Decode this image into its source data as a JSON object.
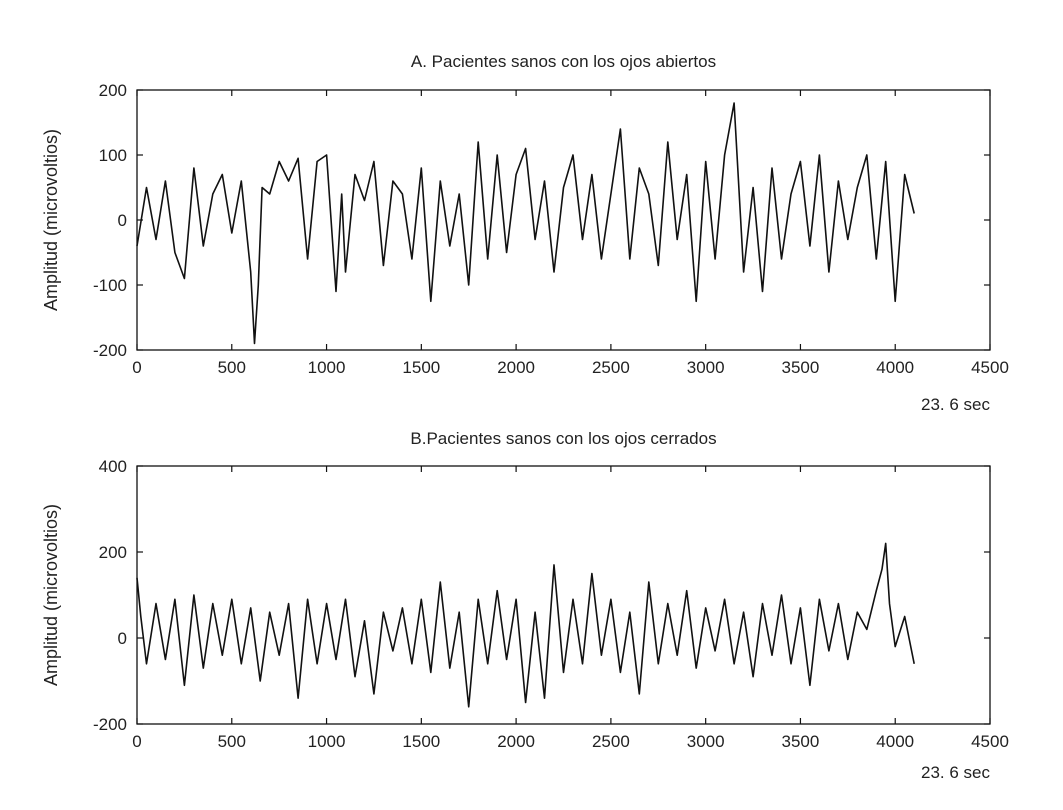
{
  "chart_data": [
    {
      "type": "line",
      "title": "A. Pacientes sanos con los ojos abiertos",
      "ylabel": "Amplitud (microvoltios)",
      "xlabel": "23. 6 sec",
      "xlim": [
        0,
        4500
      ],
      "ylim": [
        -200,
        200
      ],
      "x_ticks": [
        "0",
        "500",
        "1000",
        "1500",
        "2000",
        "2500",
        "3000",
        "3500",
        "4000",
        "4500"
      ],
      "y_ticks": [
        "200",
        "100",
        "0",
        "-100",
        "-200"
      ],
      "x_tick_values": [
        0,
        500,
        1000,
        1500,
        2000,
        2500,
        3000,
        3500,
        4000,
        4500
      ],
      "y_tick_values": [
        200,
        100,
        0,
        -100,
        -200
      ],
      "grid": false,
      "series": [
        {
          "color": "#111111",
          "x": [
            0,
            50,
            100,
            150,
            200,
            250,
            300,
            350,
            400,
            450,
            500,
            550,
            600,
            620,
            640,
            660,
            700,
            750,
            800,
            850,
            900,
            950,
            1000,
            1050,
            1080,
            1100,
            1150,
            1200,
            1250,
            1300,
            1350,
            1400,
            1450,
            1500,
            1550,
            1600,
            1650,
            1700,
            1750,
            1800,
            1850,
            1900,
            1950,
            2000,
            2050,
            2100,
            2150,
            2200,
            2250,
            2300,
            2350,
            2400,
            2450,
            2500,
            2550,
            2600,
            2650,
            2700,
            2750,
            2800,
            2850,
            2900,
            2950,
            3000,
            3050,
            3100,
            3150,
            3200,
            3250,
            3300,
            3350,
            3400,
            3450,
            3500,
            3550,
            3600,
            3650,
            3700,
            3750,
            3800,
            3850,
            3900,
            3950,
            4000,
            4050,
            4100
          ],
          "values": [
            -40,
            50,
            -30,
            60,
            -50,
            -90,
            80,
            -40,
            40,
            70,
            -20,
            60,
            -80,
            -190,
            -100,
            50,
            40,
            90,
            60,
            95,
            -60,
            90,
            100,
            -110,
            40,
            -80,
            70,
            30,
            90,
            -70,
            60,
            40,
            -60,
            80,
            -125,
            60,
            -40,
            40,
            -100,
            120,
            -60,
            100,
            -50,
            70,
            110,
            -30,
            60,
            -80,
            50,
            100,
            -30,
            70,
            -60,
            40,
            140,
            -60,
            80,
            40,
            -70,
            120,
            -30,
            70,
            -125,
            90,
            -60,
            100,
            180,
            -80,
            50,
            -110,
            80,
            -60,
            40,
            90,
            -40,
            100,
            -80,
            60,
            -30,
            50,
            100,
            -60,
            90,
            -125,
            70,
            10
          ]
        }
      ]
    },
    {
      "type": "line",
      "title": "B.Pacientes sanos con los ojos cerrados",
      "ylabel": "Amplitud (microvoltios)",
      "xlabel": "23. 6 sec",
      "xlim": [
        0,
        4500
      ],
      "ylim": [
        -200,
        400
      ],
      "x_ticks": [
        "0",
        "500",
        "1000",
        "1500",
        "2000",
        "2500",
        "3000",
        "3500",
        "4000",
        "4500"
      ],
      "y_ticks": [
        "400",
        "200",
        "0",
        "-200"
      ],
      "x_tick_values": [
        0,
        500,
        1000,
        1500,
        2000,
        2500,
        3000,
        3500,
        4000,
        4500
      ],
      "y_tick_values": [
        400,
        200,
        0,
        -200
      ],
      "grid": false,
      "series": [
        {
          "color": "#111111",
          "x": [
            0,
            20,
            50,
            100,
            150,
            200,
            250,
            300,
            350,
            400,
            450,
            500,
            550,
            600,
            650,
            700,
            750,
            800,
            850,
            900,
            950,
            1000,
            1050,
            1100,
            1150,
            1200,
            1250,
            1300,
            1350,
            1400,
            1450,
            1500,
            1550,
            1600,
            1650,
            1700,
            1750,
            1800,
            1850,
            1900,
            1950,
            2000,
            2050,
            2100,
            2150,
            2200,
            2250,
            2300,
            2350,
            2400,
            2450,
            2500,
            2550,
            2600,
            2650,
            2700,
            2750,
            2800,
            2850,
            2900,
            2950,
            3000,
            3050,
            3100,
            3150,
            3200,
            3250,
            3300,
            3350,
            3400,
            3450,
            3500,
            3550,
            3600,
            3650,
            3700,
            3750,
            3800,
            3850,
            3900,
            3930,
            3950,
            3970,
            4000,
            4050,
            4100
          ],
          "values": [
            140,
            50,
            -60,
            80,
            -50,
            90,
            -110,
            100,
            -70,
            80,
            -40,
            90,
            -60,
            70,
            -100,
            60,
            -40,
            80,
            -140,
            90,
            -60,
            80,
            -50,
            90,
            -90,
            40,
            -130,
            60,
            -30,
            70,
            -60,
            90,
            -80,
            130,
            -70,
            60,
            -160,
            90,
            -60,
            110,
            -50,
            90,
            -150,
            60,
            -140,
            170,
            -80,
            90,
            -60,
            150,
            -40,
            90,
            -80,
            60,
            -130,
            130,
            -60,
            80,
            -40,
            110,
            -70,
            70,
            -30,
            90,
            -60,
            60,
            -90,
            80,
            -40,
            100,
            -60,
            70,
            -110,
            90,
            -30,
            80,
            -50,
            60,
            20,
            110,
            160,
            220,
            80,
            -20,
            50,
            -60
          ]
        }
      ]
    }
  ]
}
